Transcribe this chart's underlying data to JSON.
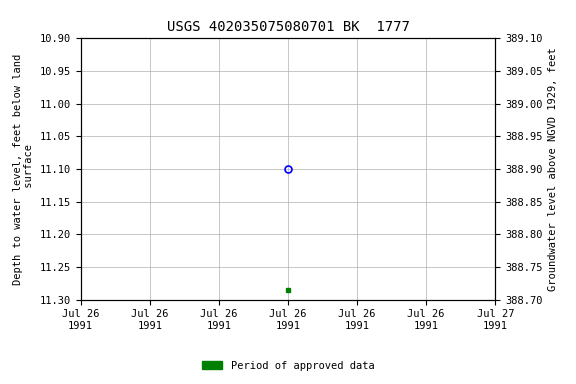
{
  "title": "USGS 402035075080701 BK  1777",
  "title_fontsize": 10,
  "left_ylabel": "Depth to water level, feet below land\n surface",
  "right_ylabel": "Groundwater level above NGVD 1929, feet",
  "ylim_left": [
    10.9,
    11.3
  ],
  "ylim_right": [
    388.7,
    389.1
  ],
  "left_yticks": [
    10.9,
    10.95,
    11.0,
    11.05,
    11.1,
    11.15,
    11.2,
    11.25,
    11.3
  ],
  "right_yticks": [
    388.7,
    388.75,
    388.8,
    388.85,
    388.9,
    388.95,
    389.0,
    389.05,
    389.1
  ],
  "point1_depth": 11.1,
  "point2_depth": 11.285,
  "point1_x_hour": 12,
  "point2_x_hour": 12,
  "legend_label": "Period of approved data",
  "legend_color": "#008000",
  "background_color": "#ffffff",
  "grid_color": "#b0b0b0",
  "ylabel_fontsize": 7.5,
  "tick_fontsize": 7.5,
  "x_tick_hours": [
    0,
    4,
    8,
    12,
    16,
    20,
    24
  ],
  "x_tick_labels": [
    "Jul 26\n1991",
    "Jul 26\n1991",
    "Jul 26\n1991",
    "Jul 26\n1991",
    "Jul 26\n1991",
    "Jul 26\n1991",
    "Jul 27\n1991"
  ]
}
